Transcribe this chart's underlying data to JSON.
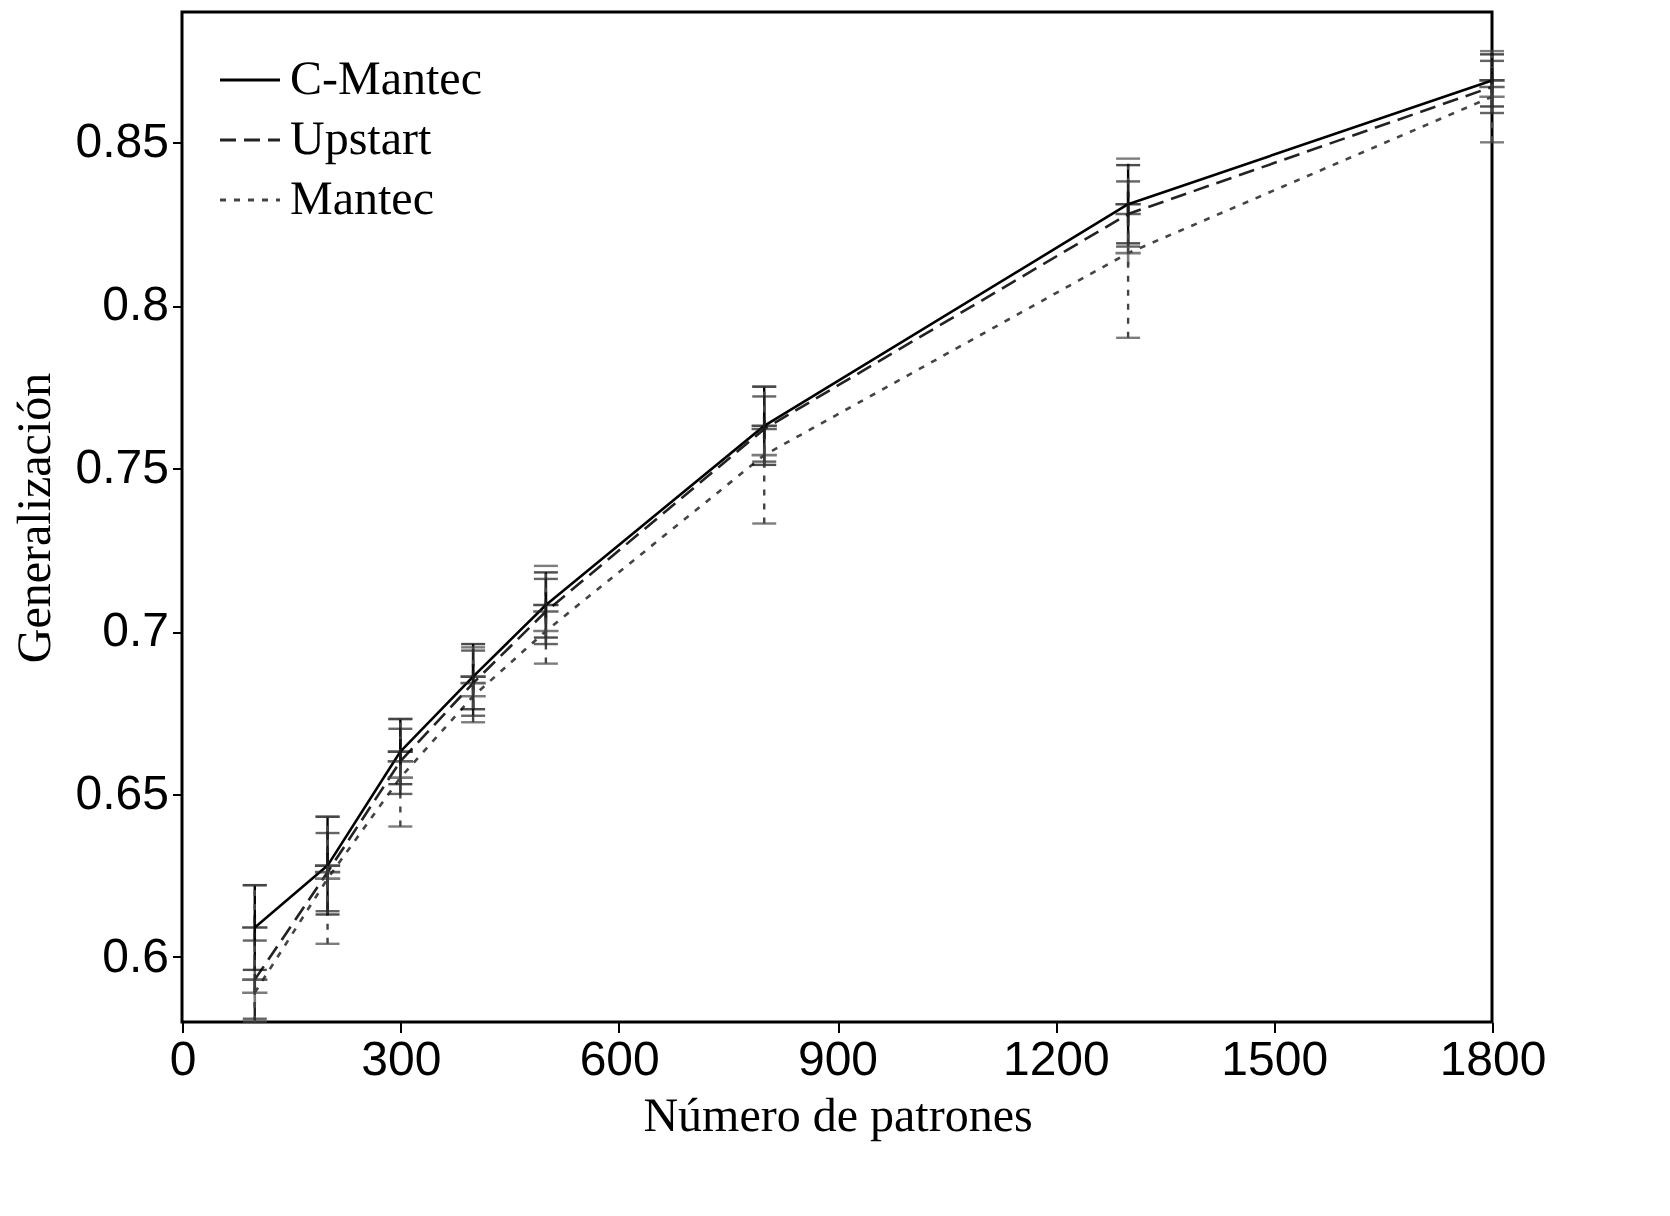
{
  "chart_data": {
    "type": "line",
    "xlabel": "Número de patrones",
    "ylabel": "Generalización",
    "x": [
      100,
      200,
      300,
      400,
      500,
      800,
      1300,
      1800
    ],
    "series": [
      {
        "name": "C-Mantec",
        "color": "#000000",
        "line_style": "solid",
        "marker": "cross",
        "values": [
          0.609,
          0.628,
          0.663,
          0.686,
          0.708,
          0.763,
          0.831,
          0.869
        ],
        "errors": [
          0.013,
          0.015,
          0.01,
          0.01,
          0.01,
          0.012,
          0.012,
          0.008
        ]
      },
      {
        "name": "Upstart",
        "color": "#222222",
        "line_style": "dashed",
        "marker": "cross",
        "values": [
          0.593,
          0.626,
          0.66,
          0.684,
          0.706,
          0.762,
          0.828,
          0.867
        ],
        "errors": [
          0.012,
          0.012,
          0.01,
          0.01,
          0.01,
          0.01,
          0.01,
          0.008
        ]
      },
      {
        "name": "Mantec",
        "color": "#444444",
        "line_style": "dotted",
        "marker": "cross",
        "values": [
          0.589,
          0.624,
          0.655,
          0.68,
          0.7,
          0.754,
          0.816,
          0.864
        ],
        "errors": [
          [
            0.58,
            0.622
          ],
          [
            0.604,
            0.643
          ],
          [
            0.64,
            0.673
          ],
          [
            0.672,
            0.695
          ],
          [
            0.69,
            0.72
          ],
          [
            0.733,
            0.775
          ],
          [
            0.79,
            0.845
          ],
          [
            0.85,
            0.878
          ]
        ]
      }
    ],
    "xlim": [
      0,
      1800
    ],
    "xticks": [
      0,
      300,
      600,
      900,
      1200,
      1500,
      1800
    ],
    "ylim": [
      0.58,
      0.89
    ],
    "yticks": [
      0.6,
      0.65,
      0.7,
      0.75,
      0.8,
      0.85
    ],
    "grid": false,
    "legend": "top left"
  }
}
